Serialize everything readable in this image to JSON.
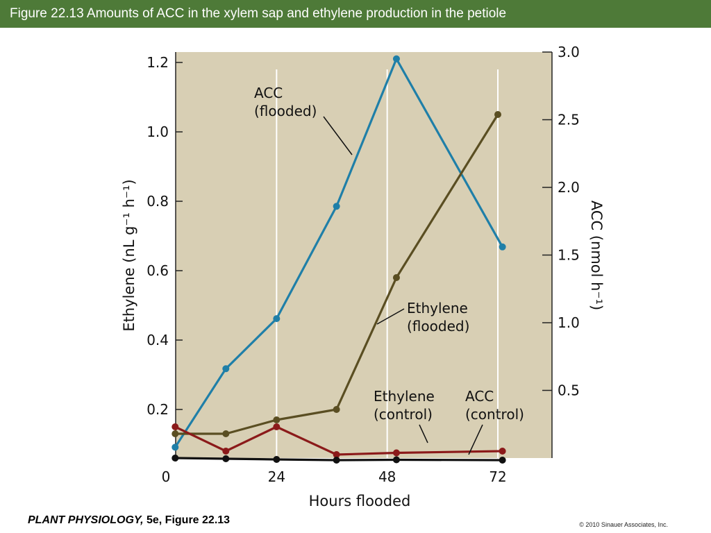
{
  "header": {
    "title": "Figure 22.13  Amounts of ACC in the xylem sap and ethylene production in the petiole"
  },
  "footer": {
    "book": "PLANT PHYSIOLOGY,",
    "edition": " 5e, Figure 22.13",
    "copyright": "© 2010 Sinauer Associates, Inc."
  },
  "chart_data": {
    "type": "line",
    "xlabel": "Hours flooded",
    "ylabel_left": "Ethylene (nL g⁻¹ h⁻¹)",
    "ylabel_right": "ACC (nmol h⁻¹)",
    "xlim": [
      0,
      81
    ],
    "ylim_left": [
      0.04,
      1.26
    ],
    "ylim_right": [
      0,
      3.0
    ],
    "x_ticks": [
      0,
      24,
      48,
      72
    ],
    "y_ticks_left": [
      0.2,
      0.4,
      0.6,
      0.8,
      1.0,
      1.2
    ],
    "y_ticks_right": [
      0.5,
      1.0,
      1.5,
      2.0,
      2.5,
      3.0
    ],
    "grid": "vertical lines at 24, 48, 72",
    "background": "#d8cfb4",
    "series": [
      {
        "name": "ACC (flooded)",
        "axis": "right",
        "color": "#1f7fa8",
        "x": [
          2,
          13,
          24,
          37,
          50,
          73
        ],
        "y": [
          0.08,
          0.66,
          1.03,
          1.86,
          2.95,
          1.56
        ]
      },
      {
        "name": "Ethylene (flooded)",
        "axis": "left",
        "color": "#5a4e22",
        "x": [
          2,
          13,
          24,
          37,
          50,
          72
        ],
        "y": [
          0.13,
          0.13,
          0.17,
          0.2,
          0.58,
          1.05
        ]
      },
      {
        "name": "Ethylene (control)",
        "axis": "left",
        "color": "#8b1a1a",
        "x": [
          2,
          13,
          24,
          37,
          50,
          73
        ],
        "y": [
          0.15,
          0.08,
          0.15,
          0.07,
          0.075,
          0.08
        ]
      },
      {
        "name": "ACC (control)",
        "axis": "left",
        "color": "#111111",
        "x": [
          2,
          13,
          24,
          37,
          50,
          73
        ],
        "y": [
          0.06,
          0.058,
          0.056,
          0.054,
          0.055,
          0.054
        ]
      }
    ],
    "annotations": [
      {
        "lines": [
          "ACC",
          "(flooded)"
        ],
        "series": "ACC (flooded)"
      },
      {
        "lines": [
          "Ethylene",
          "(flooded)"
        ],
        "series": "Ethylene (flooded)"
      },
      {
        "lines": [
          "Ethylene",
          "(control)"
        ],
        "series": "Ethylene (control)"
      },
      {
        "lines": [
          "ACC",
          "(control)"
        ],
        "series": "ACC (control)"
      }
    ]
  }
}
